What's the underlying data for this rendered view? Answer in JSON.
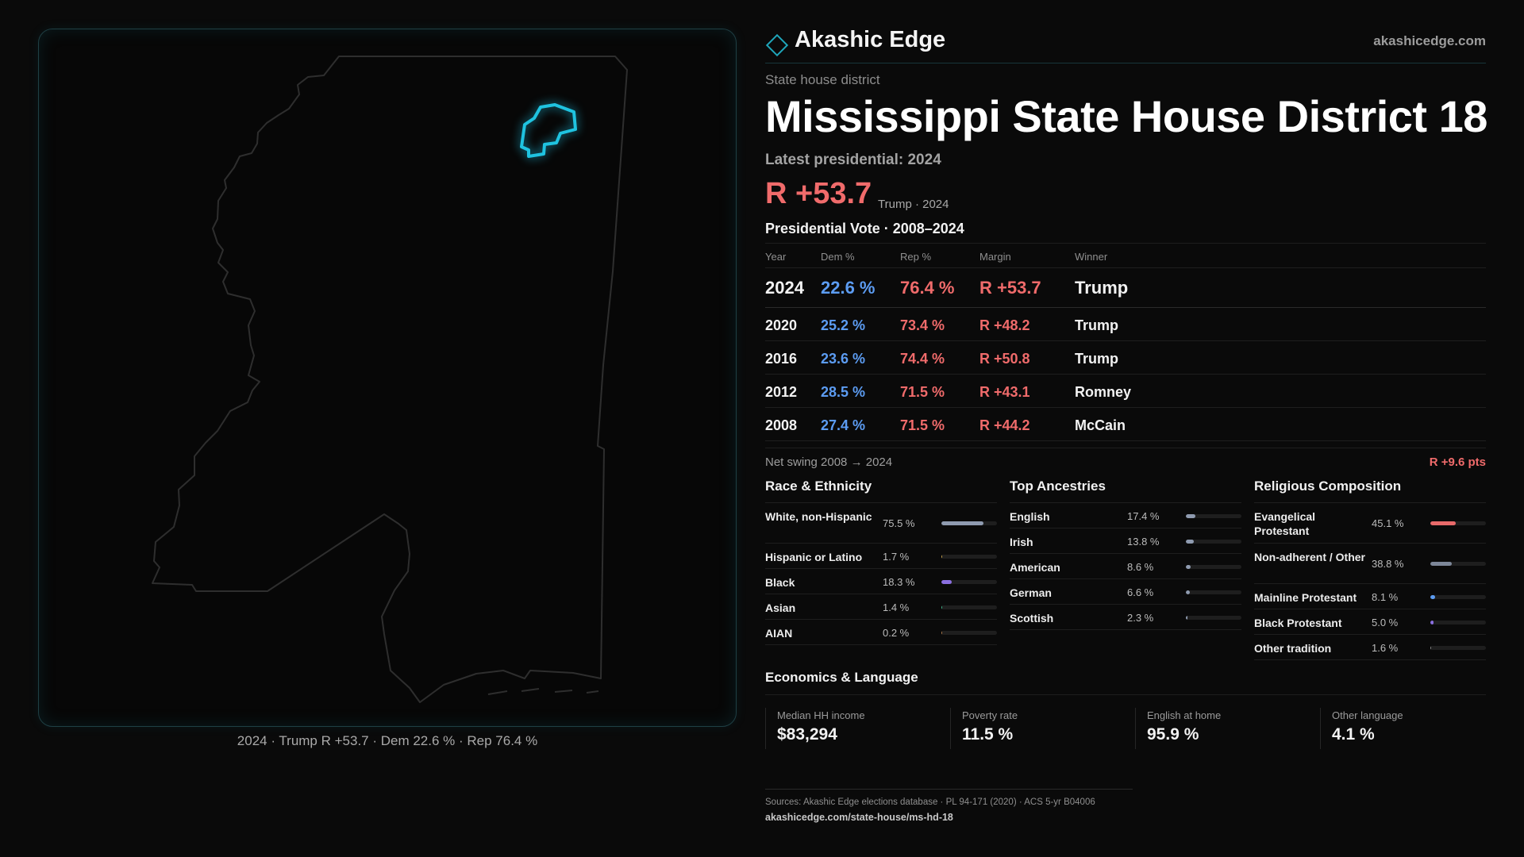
{
  "map": {
    "caption": "2024 · Trump R +53.7 · Dem 22.6 % · Rep 76.4 %"
  },
  "brand": {
    "name": "Akashic Edge",
    "url": "akashicedge.com",
    "logo_icon": "diamond-icon",
    "accent_color": "#1fa6bb"
  },
  "header": {
    "kicker": "State house district",
    "title": "Mississippi State House District 18",
    "latest": "Latest presidential: 2024",
    "margin": "R +53.7",
    "margin_sub": "Trump · 2024"
  },
  "presidential": {
    "heading": "Presidential Vote · 2008–2024",
    "columns": [
      "Year",
      "Dem %",
      "Rep %",
      "Margin",
      "Winner"
    ],
    "rows": [
      {
        "year": "2024",
        "dem": "22.6 %",
        "rep": "76.4 %",
        "margin": "R +53.7",
        "winner": "Trump"
      },
      {
        "year": "2020",
        "dem": "25.2 %",
        "rep": "73.4 %",
        "margin": "R +48.2",
        "winner": "Trump"
      },
      {
        "year": "2016",
        "dem": "23.6 %",
        "rep": "74.4 %",
        "margin": "R +50.8",
        "winner": "Trump"
      },
      {
        "year": "2012",
        "dem": "28.5 %",
        "rep": "71.5 %",
        "margin": "R +43.1",
        "winner": "Romney"
      },
      {
        "year": "2008",
        "dem": "27.4 %",
        "rep": "71.5 %",
        "margin": "R +44.2",
        "winner": "McCain"
      }
    ],
    "swing_label": "Net swing 2008 → 2024",
    "swing_value": "R +9.6 pts"
  },
  "race": {
    "title": "Race & Ethnicity",
    "rows": [
      {
        "label": "White, non-Hispanic",
        "value": "75.5 %",
        "share": 0.755,
        "color": "#8f9bb0"
      },
      {
        "label": "Hispanic or Latino",
        "value": "1.7 %",
        "share": 0.017,
        "color": "#c9a24a"
      },
      {
        "label": "Black",
        "value": "18.3 %",
        "share": 0.183,
        "color": "#8a6fe0"
      },
      {
        "label": "Asian",
        "value": "1.4 %",
        "share": 0.014,
        "color": "#3fb58a"
      },
      {
        "label": "AIAN",
        "value": "0.2 %",
        "share": 0.002,
        "color": "#b07a4a"
      }
    ]
  },
  "ancestry": {
    "title": "Top Ancestries",
    "rows": [
      {
        "label": "English",
        "value": "17.4 %",
        "share": 0.174,
        "color": "#8f9bb0"
      },
      {
        "label": "Irish",
        "value": "13.8 %",
        "share": 0.138,
        "color": "#8f9bb0"
      },
      {
        "label": "American",
        "value": "8.6 %",
        "share": 0.086,
        "color": "#8f9bb0"
      },
      {
        "label": "German",
        "value": "6.6 %",
        "share": 0.066,
        "color": "#8f9bb0"
      },
      {
        "label": "Scottish",
        "value": "2.3 %",
        "share": 0.023,
        "color": "#8f9bb0"
      }
    ]
  },
  "religion": {
    "title": "Religious Composition",
    "rows": [
      {
        "label": "Evangelical Protestant",
        "value": "45.1 %",
        "share": 0.451,
        "color": "#e86a6a"
      },
      {
        "label": "Non-adherent / Other",
        "value": "38.8 %",
        "share": 0.388,
        "color": "#7d8799"
      },
      {
        "label": "Mainline Protestant",
        "value": "8.1 %",
        "share": 0.081,
        "color": "#5c9cf2"
      },
      {
        "label": "Black Protestant",
        "value": "5.0 %",
        "share": 0.05,
        "color": "#8a6fe0"
      },
      {
        "label": "Other tradition",
        "value": "1.6 %",
        "share": 0.016,
        "color": "#8a8a8a"
      }
    ]
  },
  "economics": {
    "title": "Economics & Language",
    "items": [
      {
        "label": "Median HH income",
        "value": "$83,294"
      },
      {
        "label": "Poverty rate",
        "value": "11.5 %"
      },
      {
        "label": "English at home",
        "value": "95.9 %"
      },
      {
        "label": "Other language",
        "value": "4.1 %"
      }
    ]
  },
  "sources": {
    "text": "Sources: Akashic Edge elections database · PL 94-171 (2020) · ACS 5-yr B04006",
    "url": "akashicedge.com/state-house/ms-hd-18"
  }
}
